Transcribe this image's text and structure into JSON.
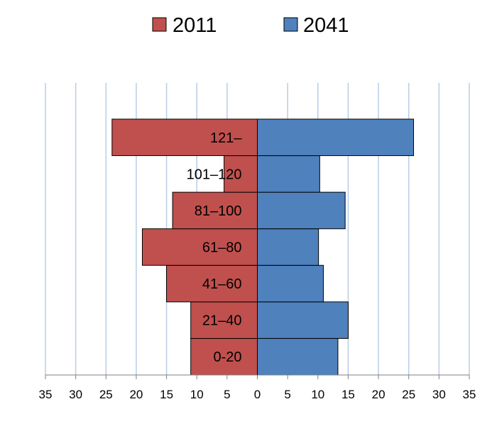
{
  "chart_data": {
    "type": "bar",
    "orientation": "horizontal",
    "layout": "population-pyramid",
    "categories": [
      "0-20",
      "21–40",
      "41–60",
      "61–80",
      "81–100",
      "101–120",
      "121–"
    ],
    "series": [
      {
        "name": "2011",
        "side": "left",
        "color": "#c0504d",
        "values": [
          11,
          11,
          15,
          19,
          14,
          5.5,
          24
        ]
      },
      {
        "name": "2041",
        "side": "right",
        "color": "#4f81bd",
        "values": [
          13.3,
          15,
          10.9,
          10.1,
          14.5,
          10.3,
          25.8
        ]
      }
    ],
    "xlim": [
      -35,
      35
    ],
    "xticks": [
      -35,
      -30,
      -25,
      -20,
      -15,
      -10,
      -5,
      0,
      5,
      10,
      15,
      20,
      25,
      30,
      35
    ],
    "xtick_labels": [
      "35",
      "30",
      "25",
      "20",
      "15",
      "10",
      "5",
      "0",
      "5",
      "10",
      "15",
      "20",
      "25",
      "30",
      "35"
    ],
    "grid": "vertical",
    "legend": "top-center",
    "title": "",
    "xlabel": "",
    "ylabel": ""
  }
}
